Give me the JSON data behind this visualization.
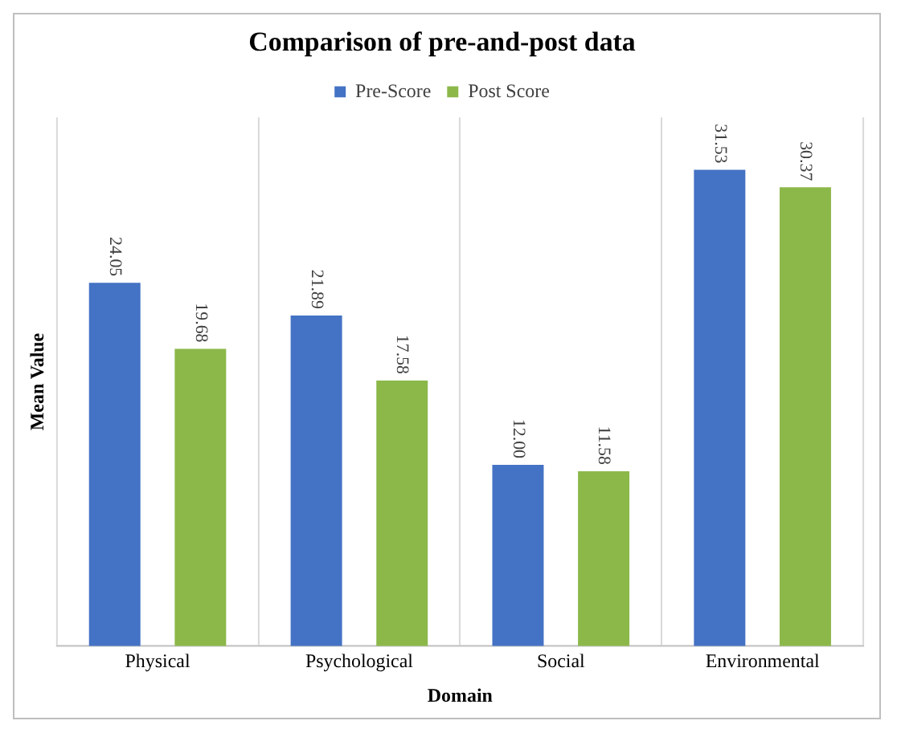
{
  "chart_data": {
    "type": "bar",
    "title": "Comparison of pre-and-post data",
    "xlabel": "Domain",
    "ylabel": "Mean Value",
    "categories": [
      "Physical",
      "Psychological",
      "Social",
      "Environmental"
    ],
    "series": [
      {
        "name": "Pre-Score",
        "color": "#4472c4",
        "values": [
          24.05,
          21.89,
          12.0,
          31.53
        ],
        "value_labels": [
          "24.05",
          "21.89",
          "12.00",
          "31.53"
        ]
      },
      {
        "name": "Post Score",
        "color": "#8cb84a",
        "values": [
          19.68,
          17.58,
          11.58,
          30.37
        ],
        "value_labels": [
          "19.68",
          "17.58",
          "11.58",
          "30.37"
        ]
      }
    ],
    "tick_labels": "x",
    "grid": "x",
    "legend": "top"
  }
}
